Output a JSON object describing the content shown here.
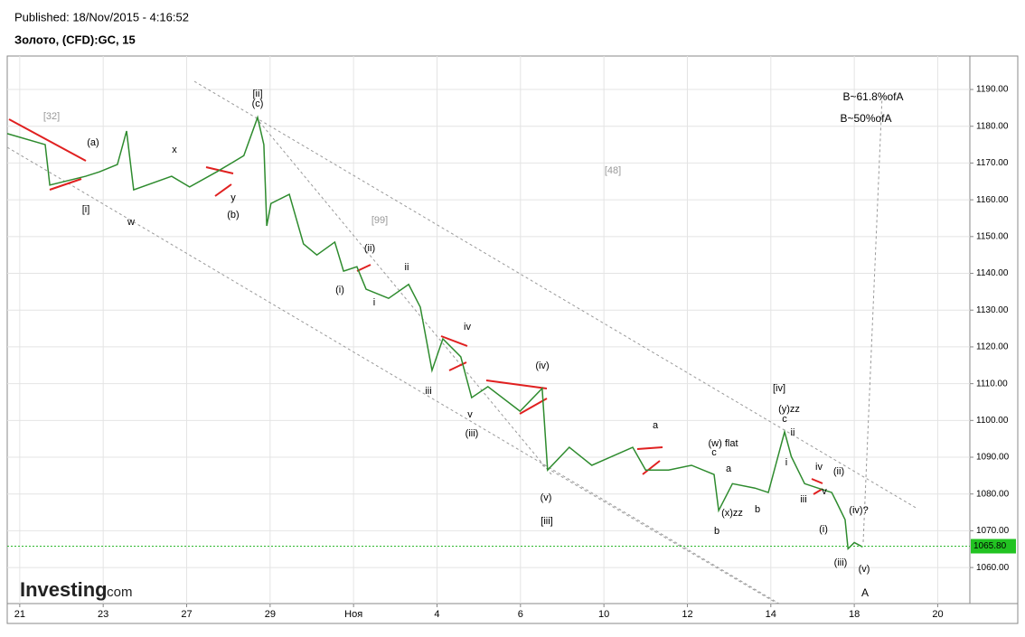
{
  "header": {
    "published": "Published: 18/Nov/2015 - 4:16:52",
    "instrument": "Золото, (CFD):GC, 15",
    "logo": "Investing",
    "logo_suffix": ".com"
  },
  "chart_data": {
    "type": "line",
    "x": [
      -0.3,
      0.61,
      0.72,
      1.58,
      1.91,
      2.34,
      2.56,
      2.73,
      3.64,
      4.07,
      4.72,
      5.37,
      5.7,
      5.85,
      5.92,
      6.02,
      6.46,
      6.8,
      7.12,
      7.55,
      7.76,
      8.08,
      8.3,
      8.84,
      9.32,
      9.6,
      9.88,
      10.14,
      10.57,
      10.83,
      11.22,
      11.99,
      12.52,
      12.65,
      13.17,
      13.71,
      14.69,
      15.0,
      15.55,
      16.1,
      16.64,
      16.75,
      17.08,
      17.62,
      17.94,
      18.33,
      18.49,
      18.81,
      19.13,
      19.46,
      19.57,
      19.78,
      19.85,
      20.0,
      20.2
    ],
    "series": [
      {
        "color": "#2e8b2e",
        "values": [
          1178,
          1175,
          1164,
          1166.4,
          1167.6,
          1169.6,
          1178.7,
          1162.7,
          1166.4,
          1163.5,
          1167.6,
          1172,
          1182.4,
          1175,
          1152.9,
          1159,
          1161.5,
          1148,
          1145,
          1148.5,
          1140.6,
          1141.8,
          1135.7,
          1133.2,
          1137,
          1130.8,
          1113.6,
          1122.2,
          1117.3,
          1106.2,
          1109.2,
          1102.5,
          1108.7,
          1086.5,
          1092.7,
          1087.8,
          1092.7,
          1086.5,
          1086.5,
          1087.8,
          1085.3,
          1075.5,
          1082.8,
          1081.6,
          1080.4,
          1096.9,
          1090.2,
          1082.8,
          1081.6,
          1080.4,
          1077.9,
          1073,
          1065.1,
          1066.8,
          1065.6
        ]
      }
    ],
    "xlim": [
      -0.3,
      22.77
    ],
    "xticks": [
      {
        "value": 0,
        "label": "21"
      },
      {
        "value": 2,
        "label": "23"
      },
      {
        "value": 4,
        "label": "27"
      },
      {
        "value": 6,
        "label": "29"
      },
      {
        "value": 8,
        "label": "Ноя"
      },
      {
        "value": 10,
        "label": "4"
      },
      {
        "value": 12,
        "label": "6"
      },
      {
        "value": 14,
        "label": "10"
      },
      {
        "value": 16,
        "label": "12"
      },
      {
        "value": 18,
        "label": "14"
      },
      {
        "value": 20,
        "label": "18"
      },
      {
        "value": 22,
        "label": "20"
      }
    ],
    "ylim": [
      1050.2,
      1199.1
    ],
    "yticks": [
      {
        "value": 1060,
        "label": "1060.00"
      },
      {
        "value": 1070,
        "label": "1070.00"
      },
      {
        "value": 1080,
        "label": "1080.00"
      },
      {
        "value": 1090,
        "label": "1090.00"
      },
      {
        "value": 1100,
        "label": "1100.00"
      },
      {
        "value": 1110,
        "label": "1110.00"
      },
      {
        "value": 1120,
        "label": "1120.00"
      },
      {
        "value": 1130,
        "label": "1130.00"
      },
      {
        "value": 1140,
        "label": "1140.00"
      },
      {
        "value": 1150,
        "label": "1150.00"
      },
      {
        "value": 1160,
        "label": "1160.00"
      },
      {
        "value": 1170,
        "label": "1170.00"
      },
      {
        "value": 1180,
        "label": "1180.00"
      },
      {
        "value": 1190,
        "label": "1190.00"
      }
    ],
    "last_price": {
      "value": 1065.8,
      "label": "1065.80"
    },
    "grid": true,
    "annotations": [
      "[32]",
      "(a)",
      "x",
      "[ii]",
      "(c)",
      "y",
      "[i]",
      "w",
      "(b)",
      "[99]",
      "[48]",
      "B~61.8%ofA",
      "B~50%ofA",
      "(ii)",
      "ii",
      "(i)",
      "i",
      "iv",
      "iii",
      "v",
      "(iii)",
      "(iv)",
      "(v)",
      "[iii]",
      "a",
      "(w) flat",
      "c",
      "a",
      "(x)zz",
      "b",
      "b",
      "[iv]",
      "(y)zz",
      "c",
      "ii",
      "i",
      "iv",
      "(ii)",
      "iii",
      "v",
      "(i)",
      "(iv)?",
      "(iii)",
      "(v)",
      "A"
    ]
  }
}
